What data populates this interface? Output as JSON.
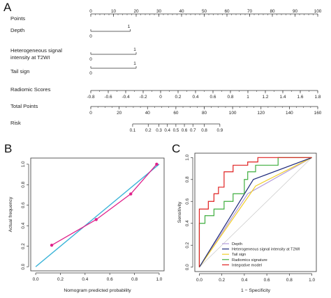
{
  "panels": {
    "a": {
      "letter": "A"
    },
    "b": {
      "letter": "B"
    },
    "c": {
      "letter": "C"
    }
  },
  "chart_data": [
    {
      "type": "nomogram",
      "rows": [
        {
          "label": [
            "Points"
          ],
          "kind": "scale",
          "min": 0,
          "max": 100,
          "labels": [
            "0",
            "10",
            "20",
            "30",
            "40",
            "50",
            "60",
            "70",
            "80",
            "90",
            "100"
          ],
          "label_values": [
            0,
            10,
            20,
            30,
            40,
            50,
            60,
            70,
            80,
            90,
            100
          ],
          "minor_step": 2
        },
        {
          "label": [
            "Depth"
          ],
          "kind": "factor",
          "levels": [
            "0",
            "1"
          ],
          "points": [
            0,
            17.4
          ]
        },
        {
          "label": [
            "Heterogeneous signal",
            "intensity at T2WI"
          ],
          "kind": "factor",
          "levels": [
            "0",
            "1"
          ],
          "points": [
            0,
            20
          ]
        },
        {
          "label": [
            "Tail sign"
          ],
          "kind": "factor",
          "levels": [
            "0",
            "1"
          ],
          "points": [
            0,
            20
          ]
        },
        {
          "label": [
            "Radiomic Scores"
          ],
          "kind": "scale",
          "min": -0.8,
          "max": 1.8,
          "labels": [
            "-0.8",
            "-0.6",
            "-0.4",
            "-0.2",
            "0",
            "0.2",
            "0.4",
            "0.6",
            "0.8",
            "1",
            "1.2",
            "1.4",
            "1.6",
            "1.8"
          ],
          "label_values": [
            -0.8,
            -0.6,
            -0.4,
            -0.2,
            0,
            0.2,
            0.4,
            0.6,
            0.8,
            1,
            1.2,
            1.4,
            1.6,
            1.8
          ],
          "minor_step": 0.1
        },
        {
          "label": [
            "Total Points"
          ],
          "kind": "scale",
          "min": 0,
          "max": 160,
          "labels": [
            "0",
            "20",
            "40",
            "60",
            "80",
            "100",
            "120",
            "140",
            "160"
          ],
          "label_values": [
            0,
            20,
            40,
            60,
            80,
            100,
            120,
            140,
            160
          ],
          "minor_step": 5
        },
        {
          "label": [
            "Risk"
          ],
          "kind": "risk",
          "labels": [
            "0.1",
            "0.2",
            "0.3",
            "0.4",
            "0.5",
            "0.6",
            "0.7",
            "0.8",
            "0.9"
          ],
          "total_points": [
            29.5,
            40.5,
            48,
            54,
            60,
            66,
            72,
            80,
            91
          ]
        }
      ]
    },
    {
      "type": "line",
      "xlabel": "Nomogram predicted probability",
      "ylabel": "Actual frequency",
      "xlim": [
        -0.04,
        1.04
      ],
      "ylim": [
        -0.04,
        1.06
      ],
      "xticks": [
        "0.0",
        "0.2",
        "0.4",
        "0.6",
        "0.8",
        "1.0"
      ],
      "yticks": [
        "0.0",
        "0.2",
        "0.4",
        "0.6",
        "0.8",
        "1.0"
      ],
      "tick_values": [
        0,
        0.2,
        0.4,
        0.6,
        0.8,
        1.0
      ],
      "series": [
        {
          "x": [
            0,
            1
          ],
          "y": [
            0,
            1
          ],
          "color": "#3bb4d8"
        },
        {
          "x": [
            0.13,
            0.49,
            0.77,
            0.98
          ],
          "y": [
            0.21,
            0.46,
            0.71,
            1.0
          ],
          "color": "#e0208a"
        }
      ],
      "grid": false
    },
    {
      "type": "line",
      "xlabel": "1 − Specificity",
      "ylabel": "Sensitivity",
      "xlim": [
        -0.04,
        1.04
      ],
      "ylim": [
        -0.04,
        1.04
      ],
      "xticks": [
        "0.0",
        "0.2",
        "0.4",
        "0.6",
        "0.8",
        "1.0"
      ],
      "yticks": [
        "0.0",
        "0.2",
        "0.4",
        "0.6",
        "0.8",
        "1.0"
      ],
      "tick_values": [
        0,
        0.2,
        0.4,
        0.6,
        0.8,
        1.0
      ],
      "legend_position": "bottom-right",
      "series": [
        {
          "name": "Depth",
          "color": "#b39ddb",
          "x": [
            0,
            0.43,
            1
          ],
          "y": [
            0,
            0.67,
            1
          ]
        },
        {
          "name": "Heterogeneous signal intensity at T2WI",
          "color": "#1f2a7a",
          "x": [
            0,
            0.48,
            1
          ],
          "y": [
            0,
            0.8,
            1
          ]
        },
        {
          "name": "Tail sign",
          "color": "#f2cf2a",
          "x": [
            0,
            0.5,
            1
          ],
          "y": [
            0,
            0.74,
            1
          ]
        },
        {
          "name": "Radiomics signature",
          "color": "#3fae3f",
          "x": [
            0,
            0,
            0.05,
            0.05,
            0.13,
            0.13,
            0.22,
            0.22,
            0.3,
            0.3,
            0.4,
            0.4,
            0.43,
            0.43,
            0.5,
            0.5,
            0.7,
            0.7,
            1
          ],
          "y": [
            0,
            0.4,
            0.4,
            0.47,
            0.47,
            0.53,
            0.53,
            0.6,
            0.6,
            0.67,
            0.67,
            0.8,
            0.8,
            0.87,
            0.87,
            0.93,
            0.93,
            1,
            1
          ]
        },
        {
          "name": "Integrative model",
          "color": "#e02020",
          "x": [
            0,
            0,
            0.08,
            0.08,
            0.13,
            0.13,
            0.17,
            0.17,
            0.22,
            0.22,
            0.3,
            0.3,
            0.43,
            0.43,
            0.52,
            0.52,
            1
          ],
          "y": [
            0,
            0.53,
            0.53,
            0.6,
            0.6,
            0.67,
            0.67,
            0.73,
            0.73,
            0.87,
            0.87,
            0.93,
            0.93,
            0.96,
            0.96,
            1,
            1
          ]
        },
        {
          "name": "",
          "color": "#c8c8c8",
          "x": [
            0,
            1
          ],
          "y": [
            0,
            1
          ]
        }
      ]
    }
  ]
}
